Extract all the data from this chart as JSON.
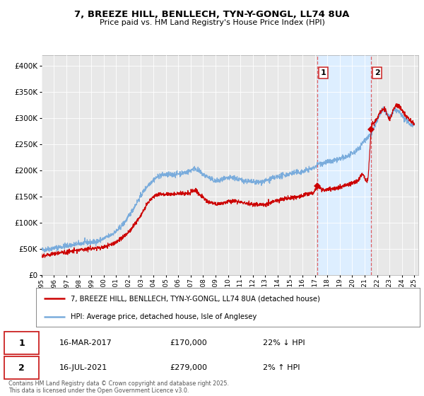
{
  "title_line1": "7, BREEZE HILL, BENLLECH, TYN-Y-GONGL, LL74 8UA",
  "title_line2": "Price paid vs. HM Land Registry's House Price Index (HPI)",
  "legend_label_red": "7, BREEZE HILL, BENLLECH, TYN-Y-GONGL, LL74 8UA (detached house)",
  "legend_label_blue": "HPI: Average price, detached house, Isle of Anglesey",
  "annotation1_date": "16-MAR-2017",
  "annotation1_price": "£170,000",
  "annotation1_hpi": "22% ↓ HPI",
  "annotation2_date": "16-JUL-2021",
  "annotation2_price": "£279,000",
  "annotation2_hpi": "2% ↑ HPI",
  "footnote": "Contains HM Land Registry data © Crown copyright and database right 2025.\nThis data is licensed under the Open Government Licence v3.0.",
  "line_color_red": "#cc0000",
  "line_color_blue": "#7aacdc",
  "background_color": "#ffffff",
  "plot_bg_color": "#e8e8e8",
  "highlight_bg_color": "#ddeeff",
  "vline_color": "#dd4444",
  "ylim": [
    0,
    420000
  ],
  "yticks": [
    0,
    50000,
    100000,
    150000,
    200000,
    250000,
    300000,
    350000,
    400000
  ],
  "year_start": 1995,
  "year_end": 2025,
  "sale1_year": 2017.21,
  "sale1_value_red": 170000,
  "sale2_year": 2021.54,
  "sale2_value_red": 279000
}
